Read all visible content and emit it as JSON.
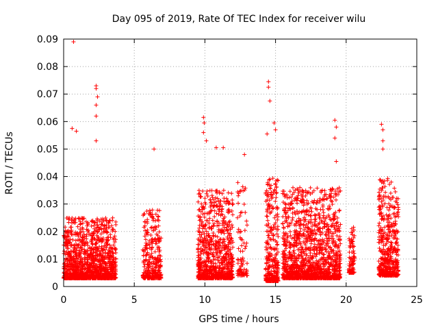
{
  "chart_data": {
    "type": "scatter",
    "title": "Day 095 of 2019, Rate Of TEC Index for receiver wilu",
    "xlabel": "GPS time / hours",
    "ylabel": "ROTI / TECUs",
    "xlim": [
      0,
      25
    ],
    "ylim": [
      0,
      0.09
    ],
    "grid": true,
    "marker": "+",
    "color": "#ff0000",
    "x_ticks": [
      "0",
      "5",
      "10",
      "15",
      "20",
      "25"
    ],
    "y_ticks": [
      "0",
      "0.01",
      "0.02",
      "0.03",
      "0.04",
      "0.05",
      "0.06",
      "0.07",
      "0.08",
      "0.09"
    ],
    "clusters": [
      {
        "x_range": [
          0.0,
          3.7
        ],
        "y_base": [
          0.003,
          0.025
        ],
        "density": "high"
      },
      {
        "x_range": [
          5.6,
          6.9
        ],
        "y_base": [
          0.003,
          0.028
        ],
        "density": "medium"
      },
      {
        "x_range": [
          9.5,
          12.0
        ],
        "y_base": [
          0.003,
          0.035
        ],
        "density": "high"
      },
      {
        "x_range": [
          12.3,
          13.0
        ],
        "y_base": [
          0.004,
          0.038
        ],
        "density": "low"
      },
      {
        "x_range": [
          14.3,
          15.2
        ],
        "y_base": [
          0.002,
          0.04
        ],
        "density": "high"
      },
      {
        "x_range": [
          15.5,
          19.6
        ],
        "y_base": [
          0.003,
          0.036
        ],
        "density": "high"
      },
      {
        "x_range": [
          20.2,
          20.6
        ],
        "y_base": [
          0.005,
          0.022
        ],
        "density": "medium"
      },
      {
        "x_range": [
          22.3,
          23.7
        ],
        "y_base": [
          0.004,
          0.04
        ],
        "density": "high"
      }
    ],
    "notable_points": [
      {
        "x": 0.7,
        "y": 0.089
      },
      {
        "x": 2.3,
        "y": 0.073
      },
      {
        "x": 2.3,
        "y": 0.072
      },
      {
        "x": 2.4,
        "y": 0.069
      },
      {
        "x": 2.3,
        "y": 0.066
      },
      {
        "x": 2.3,
        "y": 0.062
      },
      {
        "x": 2.3,
        "y": 0.053
      },
      {
        "x": 0.6,
        "y": 0.0575
      },
      {
        "x": 0.9,
        "y": 0.0565
      },
      {
        "x": 6.4,
        "y": 0.05
      },
      {
        "x": 9.9,
        "y": 0.0615
      },
      {
        "x": 9.95,
        "y": 0.0595
      },
      {
        "x": 9.9,
        "y": 0.056
      },
      {
        "x": 10.1,
        "y": 0.053
      },
      {
        "x": 11.3,
        "y": 0.0505
      },
      {
        "x": 10.8,
        "y": 0.0505
      },
      {
        "x": 12.8,
        "y": 0.048
      },
      {
        "x": 14.5,
        "y": 0.0745
      },
      {
        "x": 14.5,
        "y": 0.0725
      },
      {
        "x": 14.6,
        "y": 0.0675
      },
      {
        "x": 14.4,
        "y": 0.0555
      },
      {
        "x": 14.9,
        "y": 0.0595
      },
      {
        "x": 15.0,
        "y": 0.057
      },
      {
        "x": 19.2,
        "y": 0.0605
      },
      {
        "x": 19.3,
        "y": 0.058
      },
      {
        "x": 19.2,
        "y": 0.054
      },
      {
        "x": 19.3,
        "y": 0.0455
      },
      {
        "x": 22.5,
        "y": 0.059
      },
      {
        "x": 22.6,
        "y": 0.057
      },
      {
        "x": 22.6,
        "y": 0.053
      },
      {
        "x": 22.6,
        "y": 0.05
      }
    ]
  }
}
